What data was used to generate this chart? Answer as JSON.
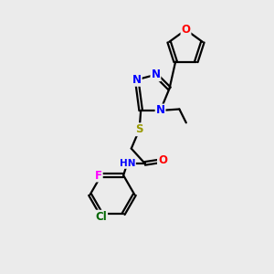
{
  "bg_color": "#ebebeb",
  "bond_color": "#000000",
  "bond_width": 1.6,
  "atom_colors": {
    "N": "#0000FF",
    "O": "#FF0000",
    "S": "#999900",
    "F": "#FF00FF",
    "Cl": "#006600",
    "C": "#000000",
    "H": "#777777"
  },
  "font_size": 8.5,
  "font_size_small": 7.5
}
